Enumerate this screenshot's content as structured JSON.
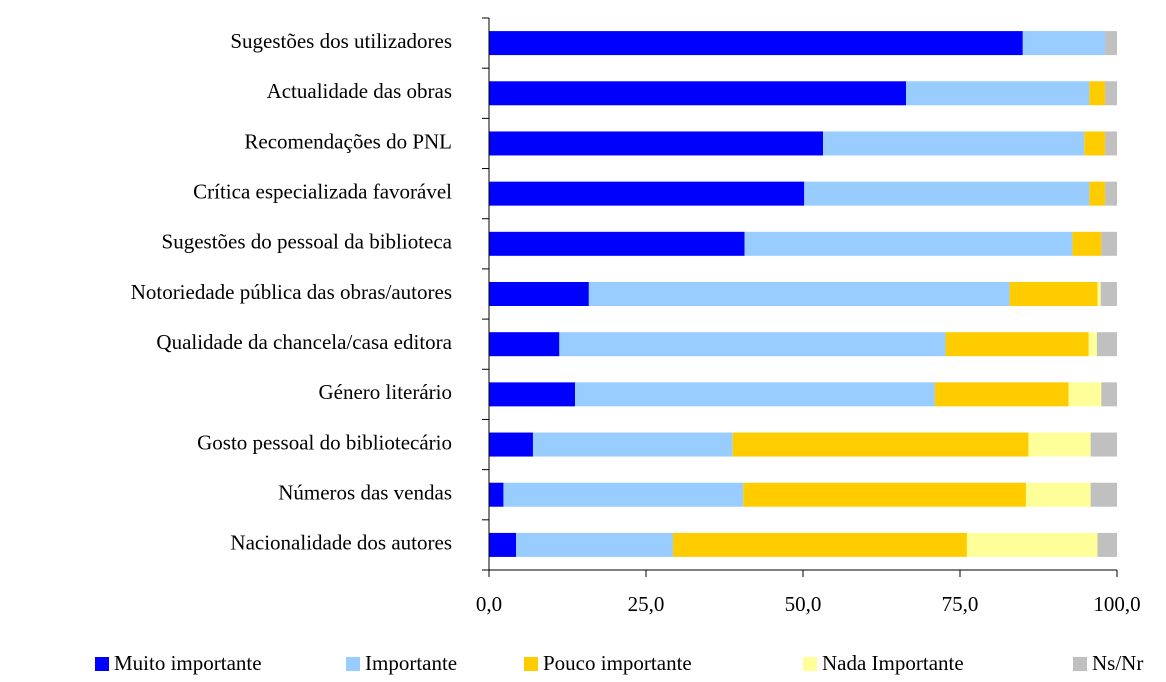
{
  "chart_data": {
    "type": "stacked_barh",
    "categories": [
      "Sugestões dos utilizadores",
      "Actualidade das obras",
      "Recomendações do PNL",
      "Crítica especializada favorável",
      "Sugestões do pessoal da biblioteca",
      "Notoriedade pública das obras/autores",
      "Qualidade da chancela/casa editora",
      "Género literário",
      "Gosto pessoal do bibliotecário",
      "Números das vendas",
      "Nacionalidade dos autores"
    ],
    "series": [
      {
        "name": "Muito importante",
        "color": "#0000ff",
        "values": [
          85.0,
          66.4,
          53.2,
          50.2,
          40.7,
          15.9,
          11.2,
          13.7,
          7.0,
          2.3,
          4.3
        ]
      },
      {
        "name": "Importante",
        "color": "#99ccff",
        "values": [
          13.1,
          29.2,
          41.6,
          45.4,
          52.2,
          67.0,
          61.5,
          57.3,
          31.8,
          38.2,
          25.0
        ]
      },
      {
        "name": "Pouco importante",
        "color": "#ffcc00",
        "values": [
          0,
          2.5,
          3.3,
          2.5,
          4.6,
          14.0,
          22.8,
          21.3,
          47.1,
          45.0,
          46.8
        ]
      },
      {
        "name": "Nada Importante",
        "color": "#ffff99",
        "values": [
          0,
          0,
          0,
          0,
          0,
          0.5,
          1.3,
          5.2,
          9.9,
          10.3,
          20.8
        ]
      },
      {
        "name": "Ns/Nr",
        "color": "#c0c0c0",
        "values": [
          1.9,
          1.9,
          1.9,
          1.9,
          2.5,
          2.6,
          3.2,
          2.5,
          4.2,
          4.2,
          3.1
        ]
      }
    ],
    "xlim": [
      0,
      100
    ],
    "xticks": [
      {
        "value": 0,
        "label": "0,0"
      },
      {
        "value": 25,
        "label": "25,0"
      },
      {
        "value": 50,
        "label": "50,0"
      },
      {
        "value": 75,
        "label": "75,0"
      },
      {
        "value": 100,
        "label": "100,0"
      }
    ],
    "legend": "bottom"
  }
}
